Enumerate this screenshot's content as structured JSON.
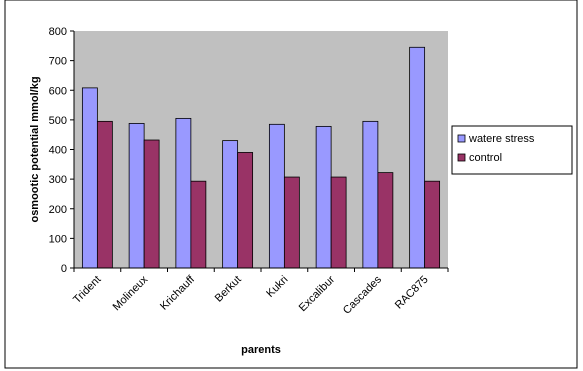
{
  "chart_data": {
    "type": "bar",
    "title": "",
    "xlabel": "parents",
    "ylabel": "osmootic potential mmol/kg",
    "categories": [
      "Trident",
      "Molineux",
      "Krichauff",
      "Berkut",
      "Kukri",
      "Excalibur",
      "Cascades",
      "RAC875"
    ],
    "series": [
      {
        "name": "watere stress",
        "color": "#9999ff",
        "values": [
          608,
          488,
          505,
          430,
          485,
          478,
          495,
          745
        ]
      },
      {
        "name": "control",
        "color": "#993366",
        "values": [
          495,
          432,
          293,
          390,
          307,
          307,
          322,
          293
        ]
      }
    ],
    "ylim": [
      0,
      800
    ],
    "yticks": [
      0,
      100,
      200,
      300,
      400,
      500,
      600,
      700,
      800
    ],
    "grid": false,
    "legend_position": "right",
    "plot_background": "#c0c0c0"
  }
}
